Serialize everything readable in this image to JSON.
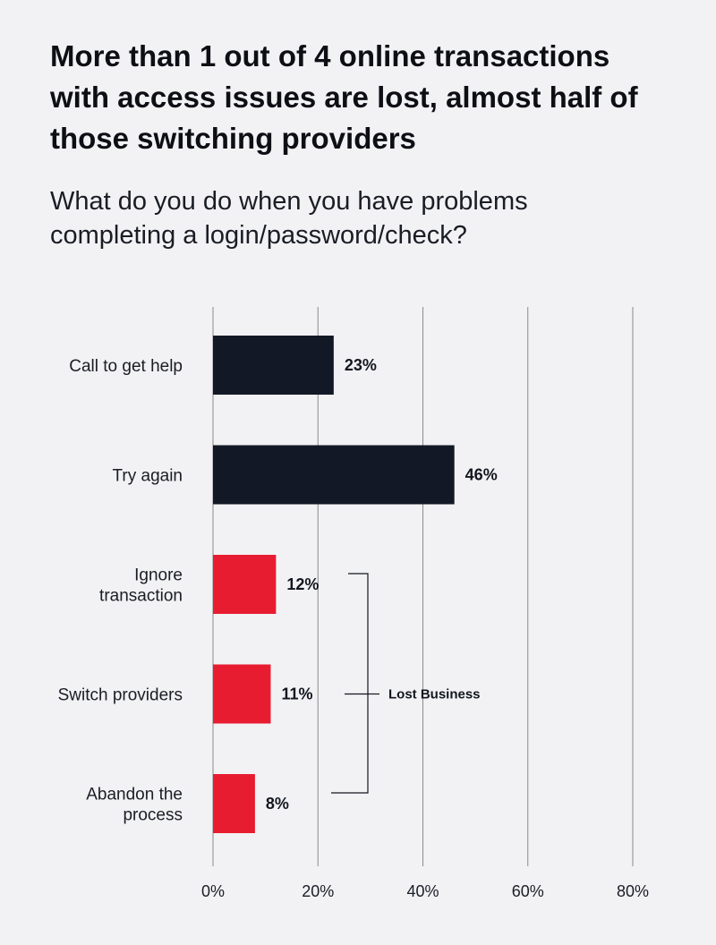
{
  "header": {
    "title": "More than 1 out of 4 online transactions with access issues are lost, almost half of those switching providers",
    "subtitle": "What do you do when you have problems completing a login/password/check?"
  },
  "chart_data": {
    "type": "bar",
    "orientation": "horizontal",
    "title": "More than 1 out of 4 online transactions with access issues are lost, almost half of those switching providers",
    "subtitle": "What do you do when you have problems completing a login/password/check?",
    "xlabel": "",
    "ylabel": "",
    "xlim": [
      0,
      80
    ],
    "grid": true,
    "ticks": [
      "0%",
      "20%",
      "40%",
      "60%",
      "80%"
    ],
    "tick_values": [
      0,
      20,
      40,
      60,
      80
    ],
    "categories": [
      [
        "Call to get help"
      ],
      [
        "Try again"
      ],
      [
        "Ignore",
        "transaction"
      ],
      [
        "Switch providers"
      ],
      [
        "Abandon the",
        "process"
      ]
    ],
    "values": [
      23,
      46,
      12,
      11,
      8
    ],
    "value_labels": [
      "23%",
      "46%",
      "12%",
      "11%",
      "8%"
    ],
    "bar_colors": [
      "#121826",
      "#121826",
      "#e81c31",
      "#e81c31",
      "#e81c31"
    ],
    "annotation": {
      "text": "Lost Business",
      "bracket_categories": [
        2,
        3,
        4
      ]
    }
  },
  "colors": {
    "background": "#f2f2f4",
    "dark_bar": "#121826",
    "red_bar": "#e81c31",
    "grid": "#8a8a8a"
  }
}
